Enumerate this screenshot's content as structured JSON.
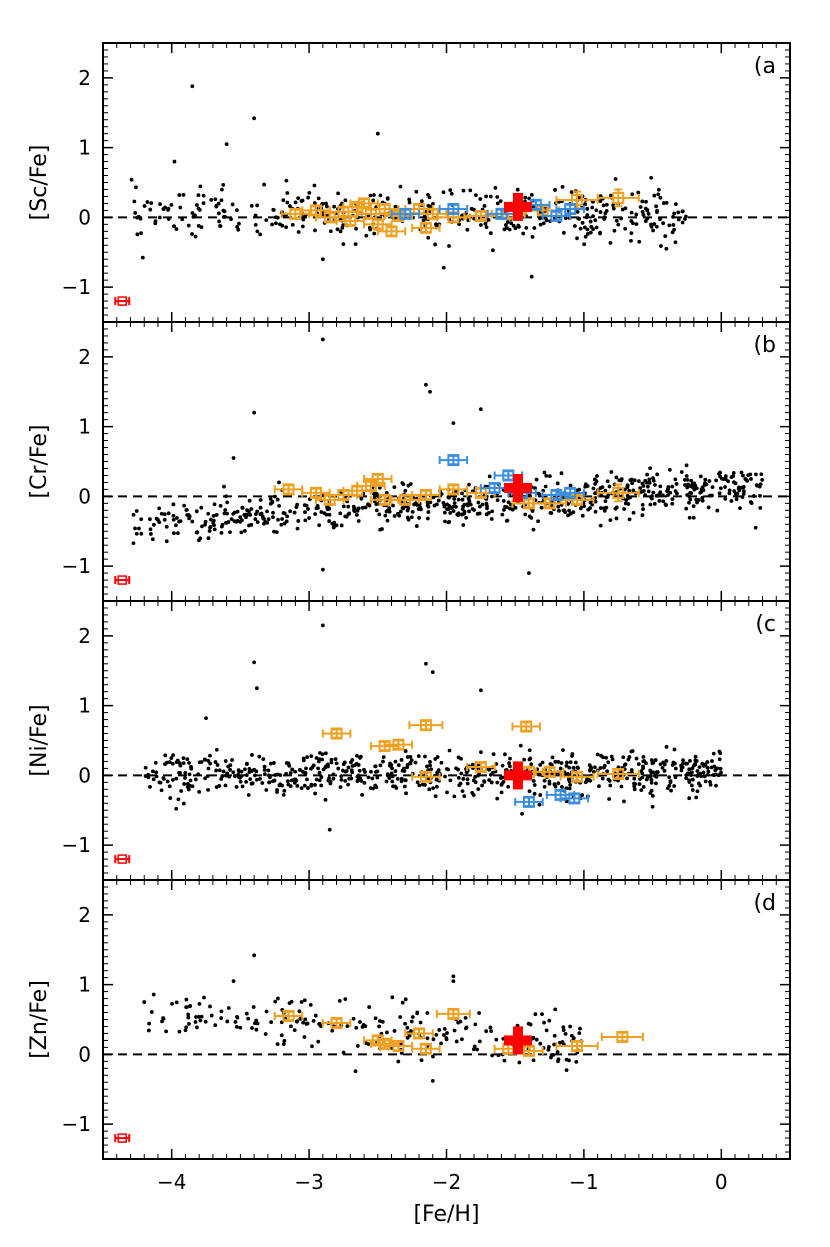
{
  "figure": {
    "x_label": "[Fe/H]",
    "x_ticks": [
      -4,
      -3,
      -2,
      -1,
      0
    ],
    "x_tick_labels": [
      "−4",
      "−3",
      "−2",
      "−1",
      "0"
    ],
    "y_ticks": [
      -1,
      0,
      1,
      2
    ],
    "y_tick_labels": [
      "−1",
      "0",
      "1",
      "2"
    ]
  },
  "colors": {
    "field_stars": "#000000",
    "orange_sample": "#f0a020",
    "blue_sample": "#3a8ee0",
    "target_star": "#ff0000",
    "reference_line": "#000000"
  },
  "chart_data": [
    {
      "type": "scatter",
      "panel": "(a",
      "ylabel": "[Sc/Fe]",
      "xlabel": "",
      "xlim": [
        -4.5,
        0.5
      ],
      "ylim": [
        -1.5,
        2.5
      ],
      "reference_line_y": 0,
      "field_stars": {
        "x_range": [
          -4.3,
          -0.25
        ],
        "y_center": 0.05,
        "y_spread": 0.18,
        "count": 420,
        "outliers": [
          [
            -3.85,
            1.88
          ],
          [
            -3.4,
            1.42
          ],
          [
            -3.6,
            1.05
          ],
          [
            -2.5,
            1.2
          ],
          [
            -3.98,
            0.8
          ],
          [
            -2.02,
            -0.72
          ],
          [
            -1.38,
            -0.85
          ],
          [
            -0.4,
            -0.45
          ],
          [
            -2.9,
            -0.6
          ],
          [
            -1.05,
            -0.3
          ]
        ]
      },
      "orange_points": [
        {
          "x": -3.1,
          "y": 0.05,
          "xerr": 0.1,
          "yerr": 0.06
        },
        {
          "x": -2.95,
          "y": 0.1,
          "xerr": 0.1,
          "yerr": 0.06
        },
        {
          "x": -2.85,
          "y": 0.0,
          "xerr": 0.1,
          "yerr": 0.06
        },
        {
          "x": -2.75,
          "y": 0.08,
          "xerr": 0.1,
          "yerr": 0.06
        },
        {
          "x": -2.7,
          "y": -0.05,
          "xerr": 0.1,
          "yerr": 0.06
        },
        {
          "x": -2.65,
          "y": 0.15,
          "xerr": 0.1,
          "yerr": 0.06
        },
        {
          "x": -2.6,
          "y": 0.2,
          "xerr": 0.1,
          "yerr": 0.06
        },
        {
          "x": -2.55,
          "y": 0.05,
          "xerr": 0.1,
          "yerr": 0.06
        },
        {
          "x": -2.5,
          "y": -0.1,
          "xerr": 0.1,
          "yerr": 0.06
        },
        {
          "x": -2.45,
          "y": 0.12,
          "xerr": 0.1,
          "yerr": 0.06
        },
        {
          "x": -2.4,
          "y": -0.2,
          "xerr": 0.1,
          "yerr": 0.06
        },
        {
          "x": -2.35,
          "y": 0.02,
          "xerr": 0.1,
          "yerr": 0.06
        },
        {
          "x": -2.2,
          "y": 0.12,
          "xerr": 0.1,
          "yerr": 0.06
        },
        {
          "x": -2.15,
          "y": -0.15,
          "xerr": 0.1,
          "yerr": 0.06
        },
        {
          "x": -2.1,
          "y": 0.05,
          "xerr": 0.1,
          "yerr": 0.06
        },
        {
          "x": -1.95,
          "y": 0.0,
          "xerr": 0.12,
          "yerr": 0.06
        },
        {
          "x": -1.75,
          "y": 0.02,
          "xerr": 0.12,
          "yerr": 0.06
        },
        {
          "x": -1.55,
          "y": 0.05,
          "xerr": 0.12,
          "yerr": 0.06
        },
        {
          "x": -1.3,
          "y": 0.1,
          "xerr": 0.12,
          "yerr": 0.06
        },
        {
          "x": -1.05,
          "y": 0.25,
          "xerr": 0.15,
          "yerr": 0.12
        },
        {
          "x": -0.75,
          "y": 0.28,
          "xerr": 0.15,
          "yerr": 0.12
        }
      ],
      "blue_points": [
        {
          "x": -2.3,
          "y": 0.05,
          "xerr": 0.1,
          "yerr": 0.06
        },
        {
          "x": -1.95,
          "y": 0.12,
          "xerr": 0.1,
          "yerr": 0.06
        },
        {
          "x": -1.6,
          "y": 0.05,
          "xerr": 0.1,
          "yerr": 0.06
        },
        {
          "x": -1.35,
          "y": 0.18,
          "xerr": 0.1,
          "yerr": 0.06
        },
        {
          "x": -1.2,
          "y": 0.02,
          "xerr": 0.1,
          "yerr": 0.06
        },
        {
          "x": -1.1,
          "y": 0.12,
          "xerr": 0.1,
          "yerr": 0.06
        }
      ],
      "target_star": {
        "x": -1.48,
        "y": 0.15
      },
      "typical_error": {
        "x": -4.36,
        "y": -1.2
      }
    },
    {
      "type": "scatter",
      "panel": "(b",
      "ylabel": "[Cr/Fe]",
      "xlabel": "",
      "xlim": [
        -4.5,
        0.5
      ],
      "ylim": [
        -1.5,
        2.5
      ],
      "reference_line_y": 0,
      "field_stars": {
        "x_range": [
          -4.3,
          0.3
        ],
        "y_center": -0.15,
        "y_spread": 0.15,
        "count": 700,
        "outliers": [
          [
            -2.9,
            2.25
          ],
          [
            -2.15,
            1.6
          ],
          [
            -2.12,
            1.5
          ],
          [
            -1.75,
            1.25
          ],
          [
            -3.4,
            1.2
          ],
          [
            -1.95,
            1.05
          ],
          [
            -3.55,
            0.55
          ],
          [
            -2.9,
            -1.05
          ],
          [
            -1.4,
            -1.1
          ],
          [
            0.25,
            -0.45
          ]
        ]
      },
      "orange_points": [
        {
          "x": -3.15,
          "y": 0.1,
          "xerr": 0.1,
          "yerr": 0.06
        },
        {
          "x": -2.95,
          "y": 0.05,
          "xerr": 0.1,
          "yerr": 0.06
        },
        {
          "x": -2.85,
          "y": -0.05,
          "xerr": 0.1,
          "yerr": 0.06
        },
        {
          "x": -2.75,
          "y": 0.02,
          "xerr": 0.1,
          "yerr": 0.06
        },
        {
          "x": -2.65,
          "y": 0.08,
          "xerr": 0.1,
          "yerr": 0.06
        },
        {
          "x": -2.55,
          "y": 0.15,
          "xerr": 0.1,
          "yerr": 0.06
        },
        {
          "x": -2.5,
          "y": 0.25,
          "xerr": 0.1,
          "yerr": 0.06
        },
        {
          "x": -2.45,
          "y": -0.05,
          "xerr": 0.1,
          "yerr": 0.06
        },
        {
          "x": -2.3,
          "y": -0.05,
          "xerr": 0.1,
          "yerr": 0.06
        },
        {
          "x": -2.15,
          "y": 0.02,
          "xerr": 0.1,
          "yerr": 0.06
        },
        {
          "x": -1.95,
          "y": 0.1,
          "xerr": 0.1,
          "yerr": 0.06
        },
        {
          "x": -1.75,
          "y": 0.05,
          "xerr": 0.1,
          "yerr": 0.06
        },
        {
          "x": -1.4,
          "y": -0.1,
          "xerr": 0.12,
          "yerr": 0.06
        },
        {
          "x": -1.25,
          "y": -0.1,
          "xerr": 0.12,
          "yerr": 0.06
        },
        {
          "x": -1.05,
          "y": -0.05,
          "xerr": 0.12,
          "yerr": 0.06
        },
        {
          "x": -0.75,
          "y": 0.05,
          "xerr": 0.15,
          "yerr": 0.12
        }
      ],
      "blue_points": [
        {
          "x": -1.95,
          "y": 0.52,
          "xerr": 0.1,
          "yerr": 0.06
        },
        {
          "x": -1.65,
          "y": 0.12,
          "xerr": 0.1,
          "yerr": 0.06
        },
        {
          "x": -1.55,
          "y": 0.3,
          "xerr": 0.1,
          "yerr": 0.06
        },
        {
          "x": -1.45,
          "y": 0.05,
          "xerr": 0.1,
          "yerr": 0.06
        },
        {
          "x": -1.2,
          "y": 0.02,
          "xerr": 0.1,
          "yerr": 0.06
        },
        {
          "x": -1.1,
          "y": 0.05,
          "xerr": 0.1,
          "yerr": 0.06
        }
      ],
      "target_star": {
        "x": -1.48,
        "y": 0.12
      },
      "typical_error": {
        "x": -4.36,
        "y": -1.2
      }
    },
    {
      "type": "scatter",
      "panel": "(c",
      "ylabel": "[Ni/Fe]",
      "xlabel": "",
      "xlim": [
        -4.5,
        0.5
      ],
      "ylim": [
        -1.5,
        2.5
      ],
      "reference_line_y": 0,
      "field_stars": {
        "x_range": [
          -4.2,
          0.0
        ],
        "y_center": 0.02,
        "y_spread": 0.15,
        "count": 700,
        "outliers": [
          [
            -2.9,
            2.15
          ],
          [
            -2.15,
            1.6
          ],
          [
            -3.4,
            1.62
          ],
          [
            -2.1,
            1.48
          ],
          [
            -1.75,
            1.22
          ],
          [
            -3.38,
            1.25
          ],
          [
            -3.75,
            0.82
          ],
          [
            -2.85,
            -0.78
          ],
          [
            -0.5,
            -0.45
          ],
          [
            -1.45,
            -0.55
          ]
        ]
      },
      "orange_points": [
        {
          "x": -2.8,
          "y": 0.6,
          "xerr": 0.1,
          "yerr": 0.06
        },
        {
          "x": -2.45,
          "y": 0.42,
          "xerr": 0.1,
          "yerr": 0.06
        },
        {
          "x": -2.35,
          "y": 0.44,
          "xerr": 0.1,
          "yerr": 0.06
        },
        {
          "x": -2.15,
          "y": 0.72,
          "xerr": 0.12,
          "yerr": 0.06
        },
        {
          "x": -2.15,
          "y": -0.02,
          "xerr": 0.1,
          "yerr": 0.06
        },
        {
          "x": -1.75,
          "y": 0.12,
          "xerr": 0.1,
          "yerr": 0.06
        },
        {
          "x": -1.42,
          "y": 0.7,
          "xerr": 0.1,
          "yerr": 0.06
        },
        {
          "x": -1.4,
          "y": 0.05,
          "xerr": 0.1,
          "yerr": 0.06
        },
        {
          "x": -1.25,
          "y": 0.05,
          "xerr": 0.1,
          "yerr": 0.06
        },
        {
          "x": -1.05,
          "y": -0.02,
          "xerr": 0.12,
          "yerr": 0.06
        },
        {
          "x": -0.75,
          "y": 0.02,
          "xerr": 0.15,
          "yerr": 0.06
        }
      ],
      "blue_points": [
        {
          "x": -1.4,
          "y": -0.38,
          "xerr": 0.1,
          "yerr": 0.06
        },
        {
          "x": -1.17,
          "y": -0.28,
          "xerr": 0.1,
          "yerr": 0.06
        },
        {
          "x": -1.07,
          "y": -0.33,
          "xerr": 0.1,
          "yerr": 0.06
        }
      ],
      "target_star": {
        "x": -1.48,
        "y": 0.0
      },
      "typical_error": {
        "x": -4.36,
        "y": -1.2
      }
    },
    {
      "type": "scatter",
      "panel": "(d",
      "ylabel": "[Zn/Fe]",
      "xlabel": "[Fe/H]",
      "xlim": [
        -4.5,
        0.5
      ],
      "ylim": [
        -1.5,
        2.5
      ],
      "reference_line_y": 0,
      "field_stars": {
        "x_range": [
          -4.2,
          -1.0
        ],
        "y_center": 0.35,
        "y_spread": 0.2,
        "count": 230,
        "outliers": [
          [
            -3.4,
            1.42
          ],
          [
            -3.55,
            1.05
          ],
          [
            -1.95,
            1.12
          ],
          [
            -1.95,
            1.05
          ],
          [
            -4.2,
            0.75
          ],
          [
            -2.1,
            -0.38
          ],
          [
            -1.1,
            0.4
          ]
        ]
      },
      "orange_points": [
        {
          "x": -3.15,
          "y": 0.55,
          "xerr": 0.1,
          "yerr": 0.06
        },
        {
          "x": -2.8,
          "y": 0.45,
          "xerr": 0.1,
          "yerr": 0.06
        },
        {
          "x": -2.5,
          "y": 0.2,
          "xerr": 0.1,
          "yerr": 0.06
        },
        {
          "x": -2.45,
          "y": 0.15,
          "xerr": 0.1,
          "yerr": 0.06
        },
        {
          "x": -2.35,
          "y": 0.12,
          "xerr": 0.1,
          "yerr": 0.06
        },
        {
          "x": -2.2,
          "y": 0.3,
          "xerr": 0.1,
          "yerr": 0.06
        },
        {
          "x": -2.15,
          "y": 0.08,
          "xerr": 0.1,
          "yerr": 0.06
        },
        {
          "x": -1.95,
          "y": 0.58,
          "xerr": 0.12,
          "yerr": 0.06
        },
        {
          "x": -1.55,
          "y": 0.08,
          "xerr": 0.1,
          "yerr": 0.06
        },
        {
          "x": -1.4,
          "y": 0.05,
          "xerr": 0.1,
          "yerr": 0.06
        },
        {
          "x": -1.05,
          "y": 0.12,
          "xerr": 0.15,
          "yerr": 0.06
        },
        {
          "x": -0.72,
          "y": 0.25,
          "xerr": 0.15,
          "yerr": 0.06
        }
      ],
      "blue_points": [],
      "target_star": {
        "x": -1.48,
        "y": 0.2
      },
      "typical_error": {
        "x": -4.36,
        "y": -1.2
      }
    }
  ]
}
